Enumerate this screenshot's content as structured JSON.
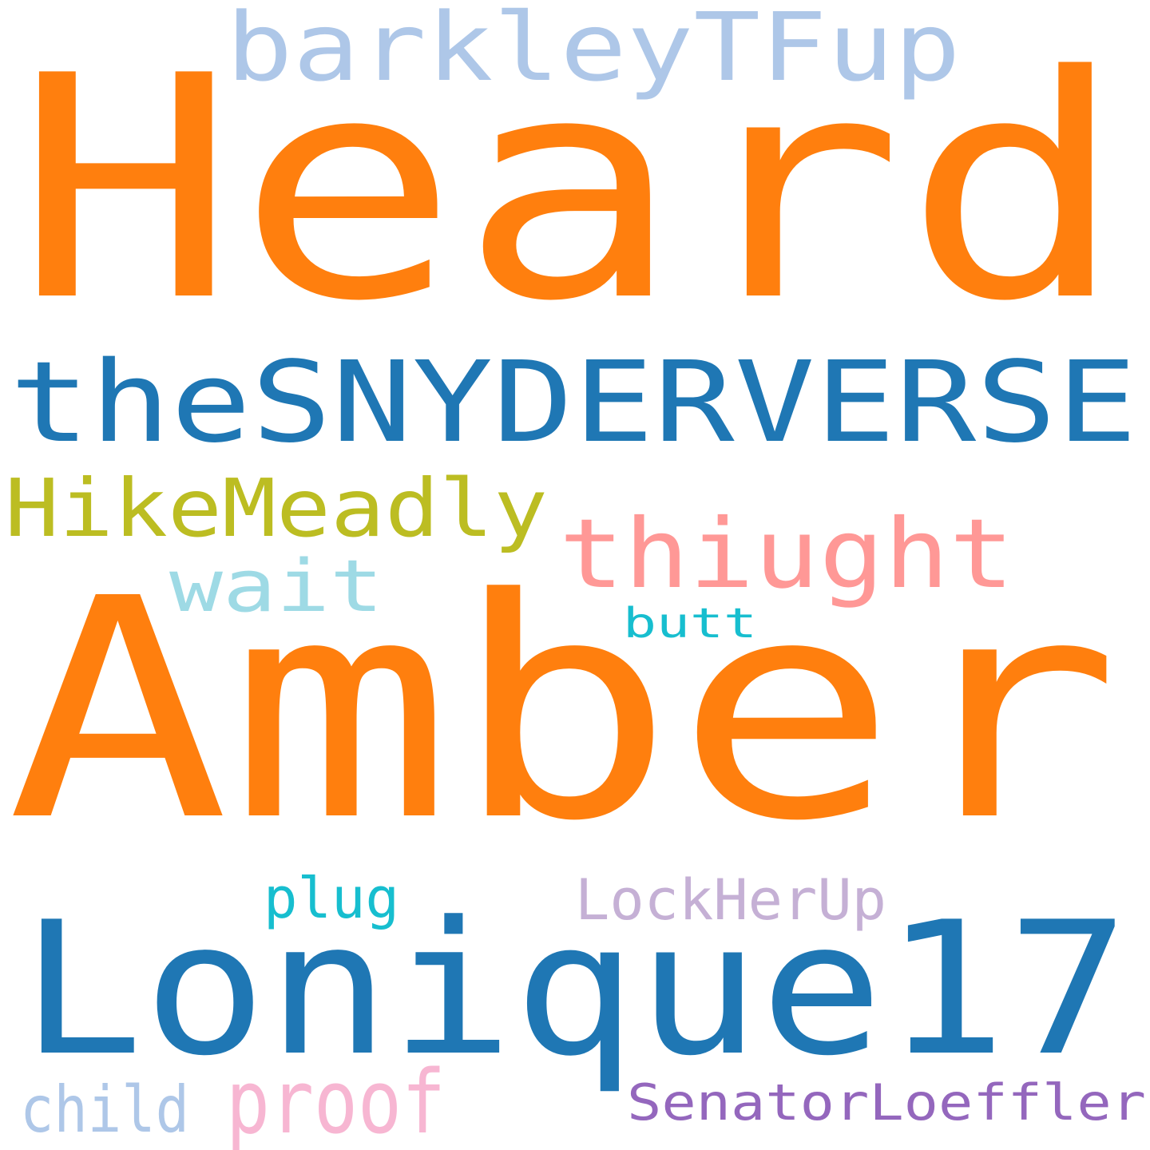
{
  "words": {
    "heard": {
      "text": "Heard",
      "color": "#ff7f0e"
    },
    "amber": {
      "text": "Amber",
      "color": "#ff7f0e"
    },
    "lonique": {
      "text": "Lonique17",
      "color": "#1f77b4"
    },
    "snyder": {
      "text": "theSNYDERVERSE",
      "color": "#1f77b4"
    },
    "barkley": {
      "text": "barkleyTFup",
      "color": "#aec7e8"
    },
    "hike": {
      "text": "HikeMeadly",
      "color": "#bcbd22"
    },
    "thiught": {
      "text": "thiught",
      "color": "#ff9896"
    },
    "wait": {
      "text": "wait",
      "color": "#9edae5"
    },
    "butt": {
      "text": "butt",
      "color": "#17becf"
    },
    "plug": {
      "text": "plug",
      "color": "#17becf"
    },
    "lockherup": {
      "text": "LockHerUp",
      "color": "#c5b0d5"
    },
    "proof": {
      "text": "proof",
      "color": "#f7b6d2"
    },
    "child": {
      "text": "child",
      "color": "#aec7e8"
    },
    "senator": {
      "text": "SenatorLoeffler",
      "color": "#9467bd"
    }
  }
}
